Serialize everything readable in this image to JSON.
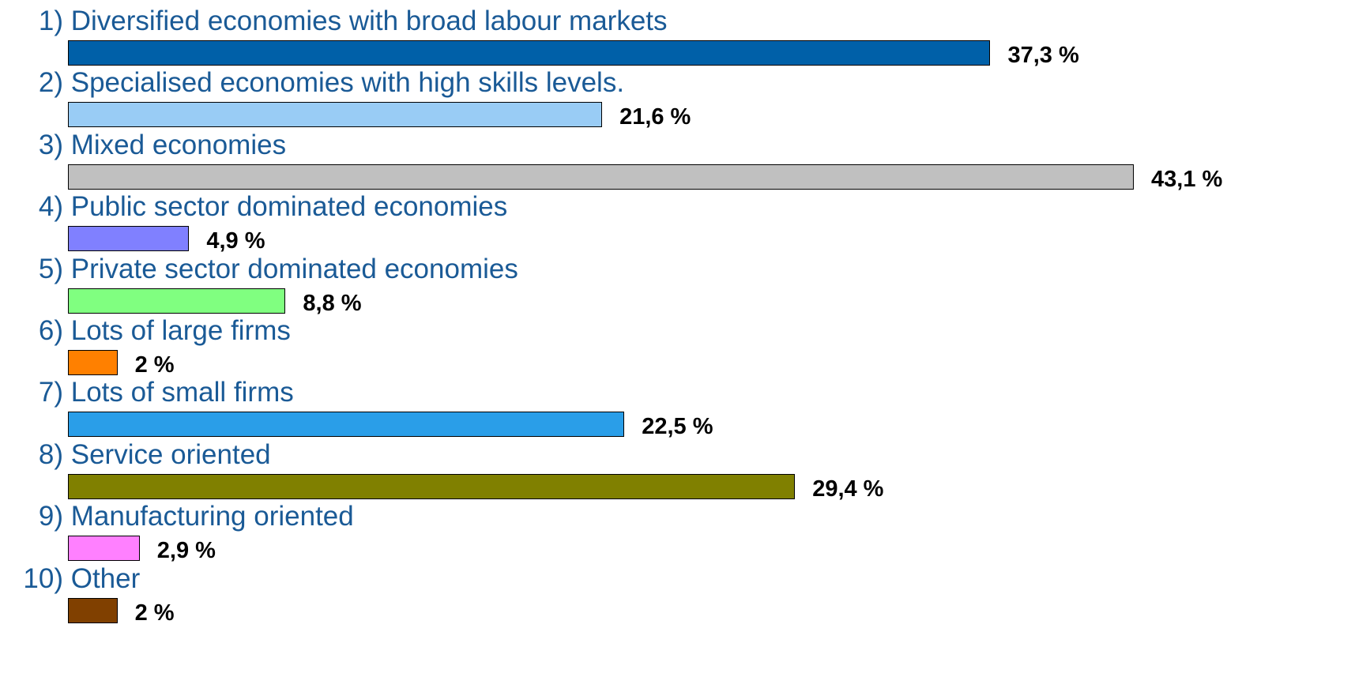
{
  "chart_data": {
    "type": "bar",
    "orientation": "horizontal",
    "title": "",
    "xlabel": "",
    "ylabel": "",
    "xlim": [
      0,
      43.1
    ],
    "grid": false,
    "legend": "none",
    "label_color": "#1a5a96",
    "items": [
      {
        "number": "1)",
        "label": "Diversified economies with broad labour markets",
        "value": 37.3,
        "value_label": "37,3 %",
        "color": "#0060a8"
      },
      {
        "number": "2)",
        "label": "Specialised economies with high skills levels.",
        "value": 21.6,
        "value_label": "21,6 %",
        "color": "#99ccf5"
      },
      {
        "number": "3)",
        "label": "Mixed economies",
        "value": 43.1,
        "value_label": "43,1 %",
        "color": "#c0c0c0"
      },
      {
        "number": "4)",
        "label": "Public sector dominated economies",
        "value": 4.9,
        "value_label": "4,9 %",
        "color": "#8080ff"
      },
      {
        "number": "5)",
        "label": "Private sector dominated economies",
        "value": 8.8,
        "value_label": "8,8 %",
        "color": "#80ff80"
      },
      {
        "number": "6)",
        "label": "Lots of large firms",
        "value": 2,
        "value_label": "2 %",
        "color": "#ff8000"
      },
      {
        "number": "7)",
        "label": "Lots of small firms",
        "value": 22.5,
        "value_label": "22,5 %",
        "color": "#2a9ee8"
      },
      {
        "number": "8)",
        "label": "Service oriented",
        "value": 29.4,
        "value_label": "29,4 %",
        "color": "#808000"
      },
      {
        "number": "9)",
        "label": "Manufacturing oriented",
        "value": 2.9,
        "value_label": "2,9 %",
        "color": "#ff80ff"
      },
      {
        "number": "10)",
        "label": "Other",
        "value": 2,
        "value_label": "2 %",
        "color": "#804000"
      }
    ]
  }
}
